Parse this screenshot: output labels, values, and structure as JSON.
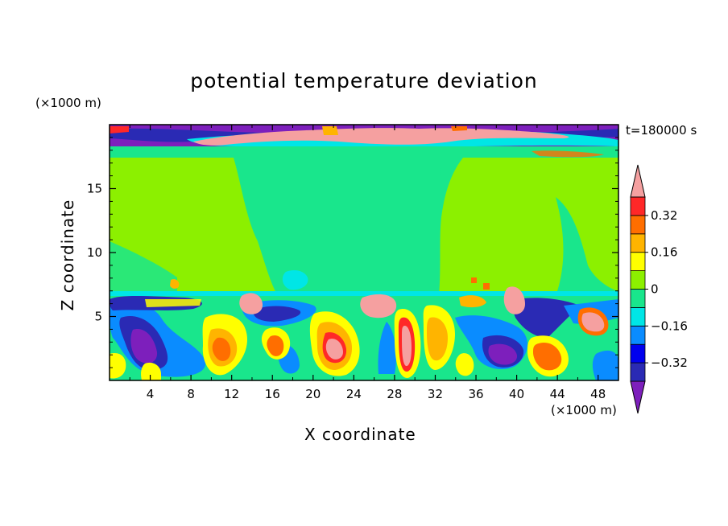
{
  "chart_data": {
    "type": "heatmap",
    "title": "potential temperature deviation",
    "xlabel": "X coordinate",
    "ylabel": "Z coordinate",
    "x_unit": "(×1000 m)",
    "y_unit": "(×1000 m)",
    "annotation": "t=180000 s",
    "xlim": [
      0,
      50
    ],
    "ylim": [
      0,
      20
    ],
    "x_ticks": [
      4,
      8,
      12,
      16,
      20,
      24,
      28,
      32,
      36,
      40,
      44,
      48
    ],
    "y_ticks": [
      5,
      10,
      15
    ],
    "colorbar": {
      "labels": [
        "0.32",
        "0.16",
        "0",
        "−0.16",
        "−0.32"
      ],
      "label_values": [
        0.32,
        0.16,
        0,
        -0.16,
        -0.32
      ],
      "levels": [
        -0.4,
        -0.32,
        -0.24,
        -0.16,
        -0.08,
        0,
        0.08,
        0.16,
        0.24,
        0.32,
        0.4
      ],
      "colors": [
        "#7d1fbc",
        "#2a2ab4",
        "#0000ee",
        "#0a8cff",
        "#00e6e6",
        "#19e68c",
        "#8cf000",
        "#ffff00",
        "#ffb400",
        "#ff6e00",
        "#ff2828",
        "#f5a0a0"
      ],
      "extend": "both"
    },
    "grid": false
  }
}
